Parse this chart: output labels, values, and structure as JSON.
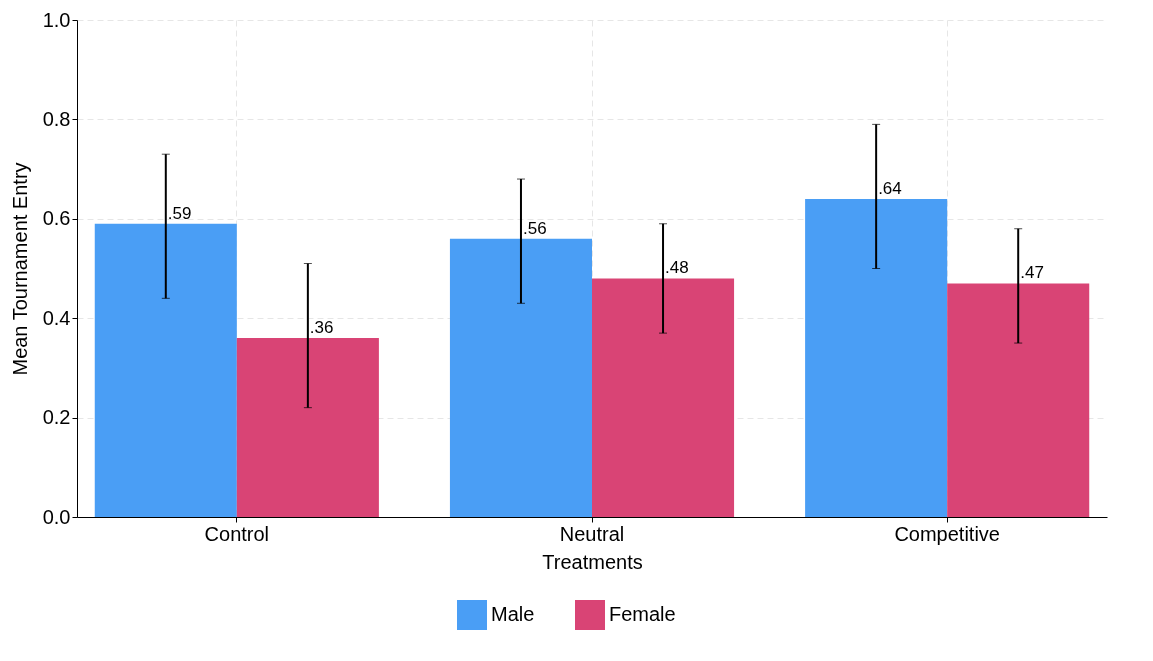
{
  "chart_data": {
    "type": "bar",
    "xlabel": "Treatments",
    "ylabel": "Mean Tournament Entry",
    "categories": [
      "Control",
      "Neutral",
      "Competitive"
    ],
    "series": [
      {
        "name": "Male",
        "color": "#4a9ef5",
        "values": [
          0.59,
          0.56,
          0.64
        ],
        "errors": [
          [
            0.44,
            0.73
          ],
          [
            0.43,
            0.68
          ],
          [
            0.5,
            0.79
          ]
        ],
        "value_labels": [
          ".59",
          ".56",
          ".64"
        ]
      },
      {
        "name": "Female",
        "color": "#d94475",
        "values": [
          0.36,
          0.48,
          0.47
        ],
        "errors": [
          [
            0.22,
            0.51
          ],
          [
            0.37,
            0.59
          ],
          [
            0.35,
            0.58
          ]
        ],
        "value_labels": [
          ".36",
          ".48",
          ".47"
        ]
      }
    ],
    "ylim": [
      0,
      1
    ],
    "yticks": [
      {
        "value": 0,
        "label": "0.0"
      },
      {
        "value": 0.2,
        "label": "0.2"
      },
      {
        "value": 0.4,
        "label": "0.4"
      },
      {
        "value": 0.6,
        "label": "0.6"
      },
      {
        "value": 0.8,
        "label": "0.8"
      },
      {
        "value": 1,
        "label": "1.0"
      }
    ],
    "grid": true,
    "legend": "bottom"
  }
}
